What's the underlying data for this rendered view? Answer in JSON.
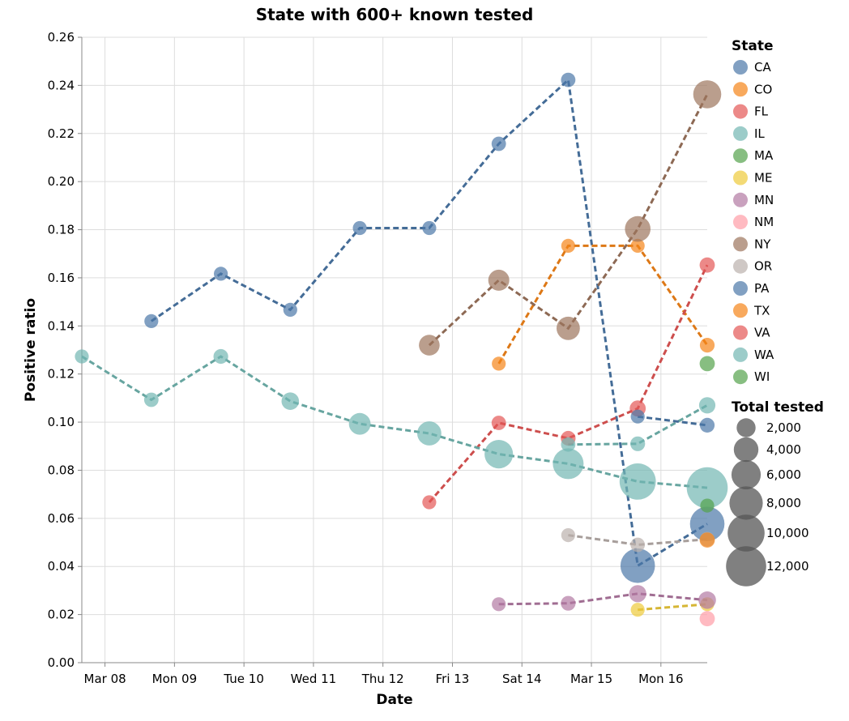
{
  "chart_data": {
    "type": "line",
    "title": "State with 600+ known tested",
    "xlabel": "Date",
    "ylabel": "Positive ratio",
    "x_ticks": [
      "Mar 08",
      "Mon 09",
      "Tue 10",
      "Wed 11",
      "Thu 12",
      "Fri 13",
      "Sat 14",
      "Mar 15",
      "Mon 16"
    ],
    "ylim": [
      0,
      0.26
    ],
    "y_ticks": [
      "0.00",
      "0.02",
      "0.04",
      "0.06",
      "0.08",
      "0.10",
      "0.12",
      "0.14",
      "0.16",
      "0.18",
      "0.20",
      "0.22",
      "0.24",
      "0.26"
    ],
    "grid": true,
    "legend_color_title": "State",
    "legend_size_title": "Total tested",
    "size_legend": [
      "2,000",
      "4,000",
      "6,000",
      "8,000",
      "10,000",
      "12,000"
    ],
    "size_legend_values": [
      2000,
      4000,
      6000,
      8000,
      10000,
      12000
    ],
    "series": [
      {
        "name": "CA",
        "color": "#4c78a8",
        "points": [
          [
            "2020-03-08T16:00",
            0.142,
            700
          ],
          [
            "2020-03-09T16:00",
            0.1617,
            700
          ],
          [
            "2020-03-10T16:00",
            0.1467,
            700
          ],
          [
            "2020-03-11T16:00",
            0.1807,
            700
          ],
          [
            "2020-03-12T16:00",
            0.1807,
            700
          ],
          [
            "2020-03-13T16:00",
            0.2157,
            800
          ],
          [
            "2020-03-14T16:00",
            0.2423,
            800
          ],
          [
            "2020-03-15T16:00",
            0.0403,
            8600
          ],
          [
            "2020-03-16T16:00",
            0.0577,
            8600
          ]
        ]
      },
      {
        "name": "CO",
        "color": "#f58518",
        "points": [
          [
            "2020-03-13T16:00",
            0.1243,
            700
          ],
          [
            "2020-03-14T16:00",
            0.1733,
            700
          ],
          [
            "2020-03-15T16:00",
            0.1733,
            700
          ],
          [
            "2020-03-16T16:00",
            0.132,
            900
          ]
        ]
      },
      {
        "name": "FL",
        "color": "#e45756",
        "points": [
          [
            "2020-03-12T16:00",
            0.0667,
            700
          ],
          [
            "2020-03-13T16:00",
            0.0997,
            800
          ],
          [
            "2020-03-14T16:00",
            0.0933,
            900
          ],
          [
            "2020-03-15T16:00",
            0.1057,
            1200
          ],
          [
            "2020-03-16T16:00",
            0.1653,
            1000
          ]
        ]
      },
      {
        "name": "IL",
        "color": "#72b7b2",
        "points": [
          [
            "2020-03-14T16:00",
            0.0907,
            800
          ],
          [
            "2020-03-15T16:00",
            0.091,
            900
          ],
          [
            "2020-03-16T16:00",
            0.107,
            1300
          ]
        ]
      },
      {
        "name": "MA",
        "color": "#54a24b",
        "points": [
          [
            "2020-03-16T16:00",
            0.1243,
            1000
          ]
        ]
      },
      {
        "name": "ME",
        "color": "#eeca3b",
        "points": [
          [
            "2020-03-15T16:00",
            0.022,
            700
          ],
          [
            "2020-03-16T16:00",
            0.0243,
            700
          ]
        ]
      },
      {
        "name": "MN",
        "color": "#b279a2",
        "points": [
          [
            "2020-03-13T16:00",
            0.0243,
            700
          ],
          [
            "2020-03-14T16:00",
            0.0247,
            900
          ],
          [
            "2020-03-15T16:00",
            0.0287,
            1500
          ],
          [
            "2020-03-16T16:00",
            0.026,
            1600
          ]
        ]
      },
      {
        "name": "NM",
        "color": "#ff9da6",
        "points": [
          [
            "2020-03-16T16:00",
            0.0183,
            1000
          ]
        ]
      },
      {
        "name": "NY",
        "color": "#9d755d",
        "points": [
          [
            "2020-03-12T16:00",
            0.132,
            2600
          ],
          [
            "2020-03-13T16:00",
            0.159,
            2700
          ],
          [
            "2020-03-14T16:00",
            0.139,
            3500
          ],
          [
            "2020-03-15T16:00",
            0.1803,
            4400
          ],
          [
            "2020-03-16T16:00",
            0.2363,
            5400
          ]
        ]
      },
      {
        "name": "OR",
        "color": "#bab0ac",
        "points": [
          [
            "2020-03-14T16:00",
            0.053,
            700
          ],
          [
            "2020-03-15T16:00",
            0.049,
            800
          ],
          [
            "2020-03-16T16:00",
            0.0513,
            900
          ]
        ]
      },
      {
        "name": "PA",
        "color": "#4c78a8",
        "points": [
          [
            "2020-03-15T16:00",
            0.1023,
            700
          ],
          [
            "2020-03-16T16:00",
            0.0987,
            900
          ]
        ]
      },
      {
        "name": "TX",
        "color": "#f58518",
        "points": [
          [
            "2020-03-16T16:00",
            0.051,
            1000
          ]
        ]
      },
      {
        "name": "VA",
        "color": "#e45756",
        "points": []
      },
      {
        "name": "WA",
        "color": "#72b7b2",
        "points": [
          [
            "2020-03-07T16:00",
            0.1273,
            700
          ],
          [
            "2020-03-08T16:00",
            0.1093,
            800
          ],
          [
            "2020-03-09T16:00",
            0.1273,
            900
          ],
          [
            "2020-03-10T16:00",
            0.1087,
            1600
          ],
          [
            "2020-03-11T16:00",
            0.0993,
            2900
          ],
          [
            "2020-03-12T16:00",
            0.0953,
            3800
          ],
          [
            "2020-03-13T16:00",
            0.0867,
            5600
          ],
          [
            "2020-03-14T16:00",
            0.0827,
            6700
          ],
          [
            "2020-03-15T16:00",
            0.0753,
            9600
          ],
          [
            "2020-03-16T16:00",
            0.0727,
            12500
          ]
        ]
      },
      {
        "name": "WI",
        "color": "#54a24b",
        "points": [
          [
            "2020-03-16T16:00",
            0.0653,
            700
          ]
        ]
      }
    ]
  }
}
